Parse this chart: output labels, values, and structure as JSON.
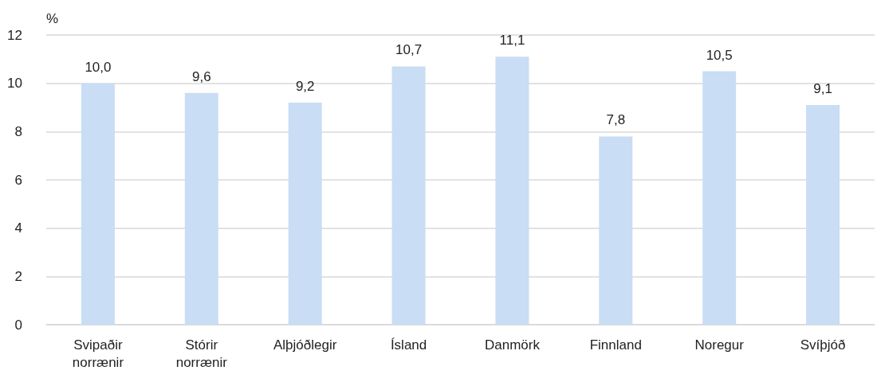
{
  "chart_data": {
    "type": "bar",
    "ylabel": "%",
    "categories": [
      "Svipaðir\nnorrænir",
      "Stórir\nnorrænir",
      "Alþjóðlegir",
      "Ísland",
      "Danmörk",
      "Finnland",
      "Noregur",
      "Svíþjóð"
    ],
    "values": [
      10.0,
      9.6,
      9.2,
      10.7,
      11.1,
      7.8,
      10.5,
      9.1
    ],
    "value_labels": [
      "10,0",
      "9,6",
      "9,2",
      "10,7",
      "11,1",
      "7,8",
      "10,5",
      "9,1"
    ],
    "color": "#c9ddf4",
    "ylim": [
      0,
      12
    ],
    "yticks": [
      0,
      2,
      4,
      6,
      8,
      10,
      12
    ],
    "grid": "y"
  }
}
